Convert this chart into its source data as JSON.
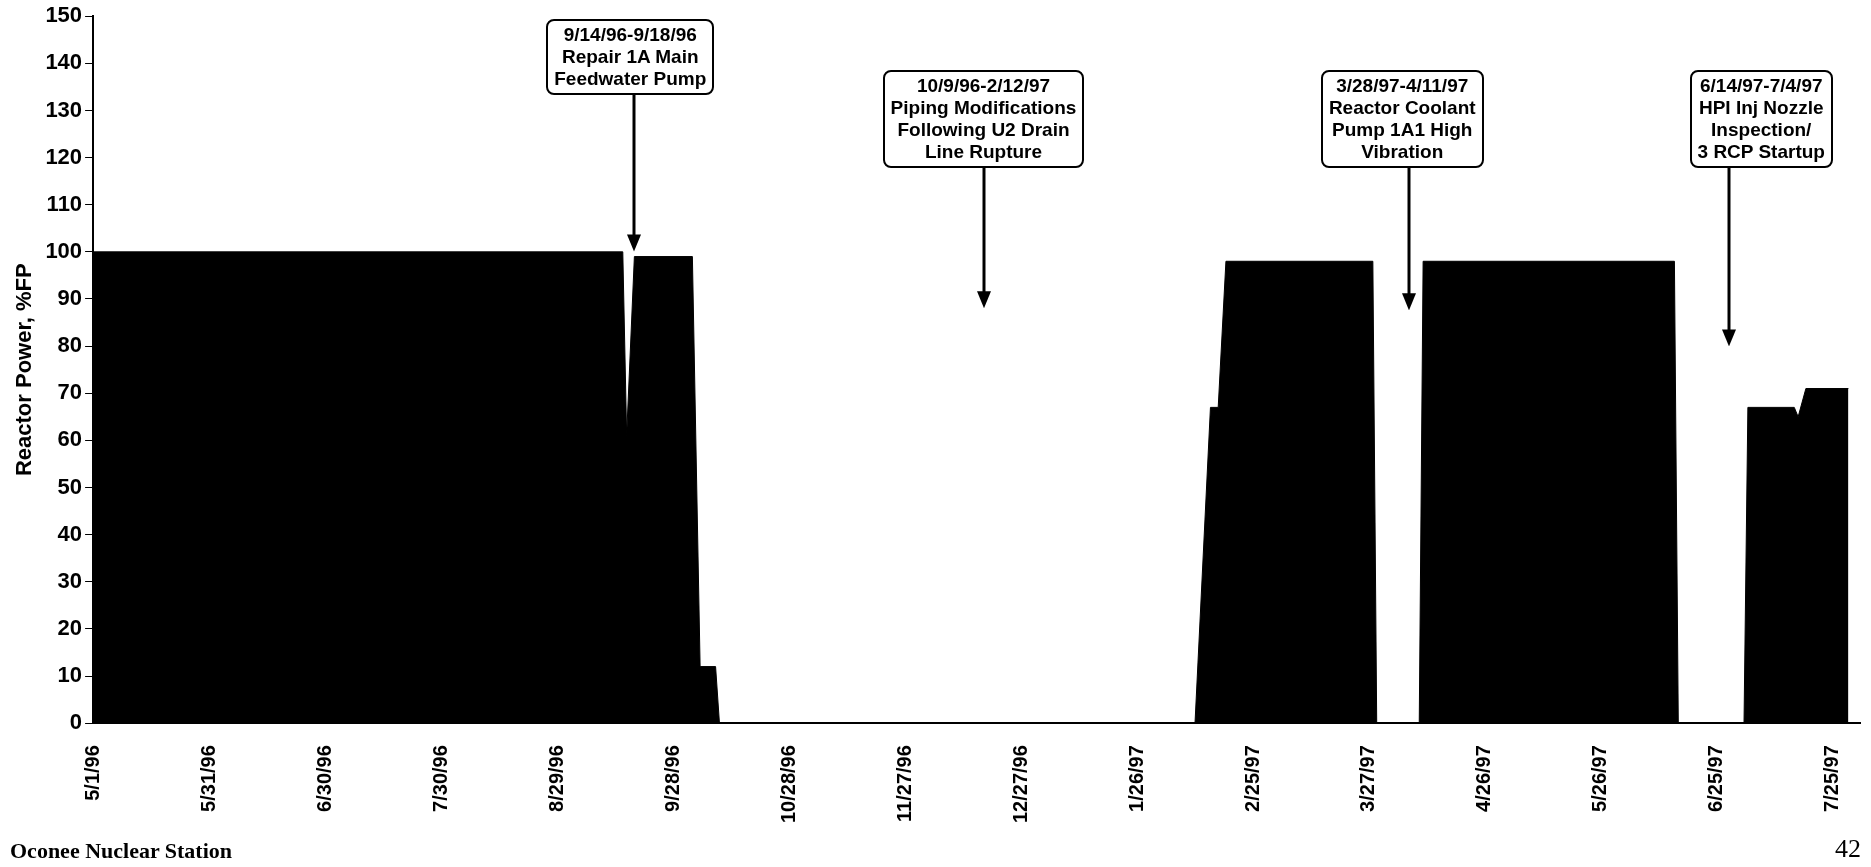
{
  "chart_data": {
    "type": "area",
    "ylabel": "Reactor Power, %FP",
    "x": [
      "1996-05-01",
      "1996-09-15",
      "1996-09-16",
      "1996-09-18",
      "1996-10-03",
      "1996-10-05",
      "1996-10-09",
      "1996-10-10",
      "1997-02-10",
      "1997-02-14",
      "1997-02-16",
      "1997-02-18",
      "1997-03-28",
      "1997-03-29",
      "1997-04-09",
      "1997-04-10",
      "1997-06-14",
      "1997-06-15",
      "1997-07-02",
      "1997-07-03",
      "1997-07-15",
      "1997-07-16",
      "1997-07-18",
      "1997-07-29"
    ],
    "series": [
      {
        "color": "#000000",
        "values": [
          100,
          100,
          61,
          99,
          99,
          12,
          12,
          0,
          0,
          67,
          67,
          98,
          98,
          0,
          0,
          98,
          98,
          0,
          0,
          67,
          67,
          65,
          71,
          71
        ]
      }
    ],
    "xlim": [
      "1996-05-01",
      "1997-08-01"
    ],
    "xticks": [
      {
        "value": "1996-05-01",
        "label": "5/1/96"
      },
      {
        "value": "1996-05-31",
        "label": "5/31/96"
      },
      {
        "value": "1996-06-30",
        "label": "6/30/96"
      },
      {
        "value": "1996-07-30",
        "label": "7/30/96"
      },
      {
        "value": "1996-08-29",
        "label": "8/29/96"
      },
      {
        "value": "1996-09-28",
        "label": "9/28/96"
      },
      {
        "value": "1996-10-28",
        "label": "10/28/96"
      },
      {
        "value": "1996-11-27",
        "label": "11/27/96"
      },
      {
        "value": "1996-12-27",
        "label": "12/27/96"
      },
      {
        "value": "1997-01-26",
        "label": "1/26/97"
      },
      {
        "value": "1997-02-25",
        "label": "2/25/97"
      },
      {
        "value": "1997-03-27",
        "label": "3/27/97"
      },
      {
        "value": "1997-04-26",
        "label": "4/26/97"
      },
      {
        "value": "1997-05-26",
        "label": "5/26/97"
      },
      {
        "value": "1997-06-25",
        "label": "6/25/97"
      },
      {
        "value": "1997-07-25",
        "label": "7/25/97"
      }
    ],
    "ylim": [
      0,
      150
    ],
    "yticks": [
      0,
      10,
      20,
      30,
      40,
      50,
      60,
      70,
      80,
      90,
      100,
      110,
      120,
      130,
      140,
      150
    ],
    "grid": false,
    "legend": false,
    "marker": "none",
    "annotations": [
      "9/14/96-9/18/96\nRepair 1A Main\nFeedwater Pump",
      "10/9/96-2/12/97\nPiping Modifications\nFollowing U2 Drain\nLine Rupture",
      "3/28/97-4/11/97\nReactor Coolant\nPump 1A1 High\nVibration",
      "6/14/97-7/4/97\nHPI Inj Nozzle\nInspection/\n3 RCP Startup",
      "Oconee Nuclear Station",
      "42"
    ]
  }
}
